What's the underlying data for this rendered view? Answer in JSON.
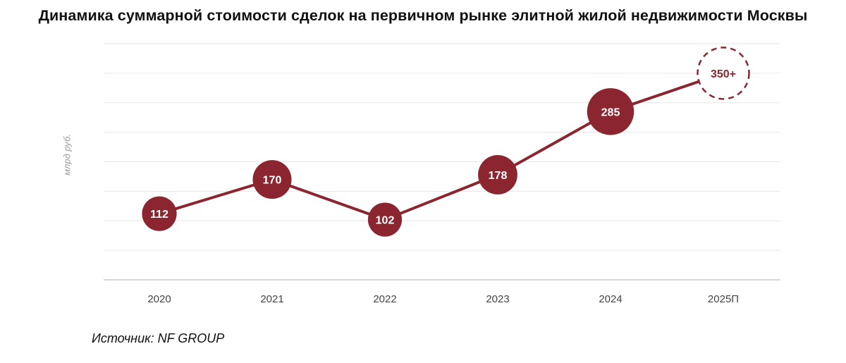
{
  "chart_data": {
    "type": "line",
    "title": "Динамика суммарной стоимости сделок на первичном рынке элитной жилой недвижимости Москвы",
    "ylabel": "млрд руб.",
    "xlabel": "",
    "categories": [
      "2020",
      "2021",
      "2022",
      "2023",
      "2024",
      "2025П"
    ],
    "values": [
      112,
      170,
      102,
      178,
      285,
      350
    ],
    "data_labels": [
      "112",
      "170",
      "102",
      "178",
      "285",
      "350+"
    ],
    "forecast_index": 5,
    "ylim": [
      0,
      400
    ],
    "grid": true,
    "legend": "none",
    "colors": {
      "line": "#8b2631",
      "marker": "#8b2631",
      "marker_text": "#ffffff",
      "forecast_text": "#8b2631",
      "grid": "#e6e6e6",
      "axis": "#cccccc"
    }
  },
  "footer": {
    "source": "Источник: NF GROUP"
  }
}
